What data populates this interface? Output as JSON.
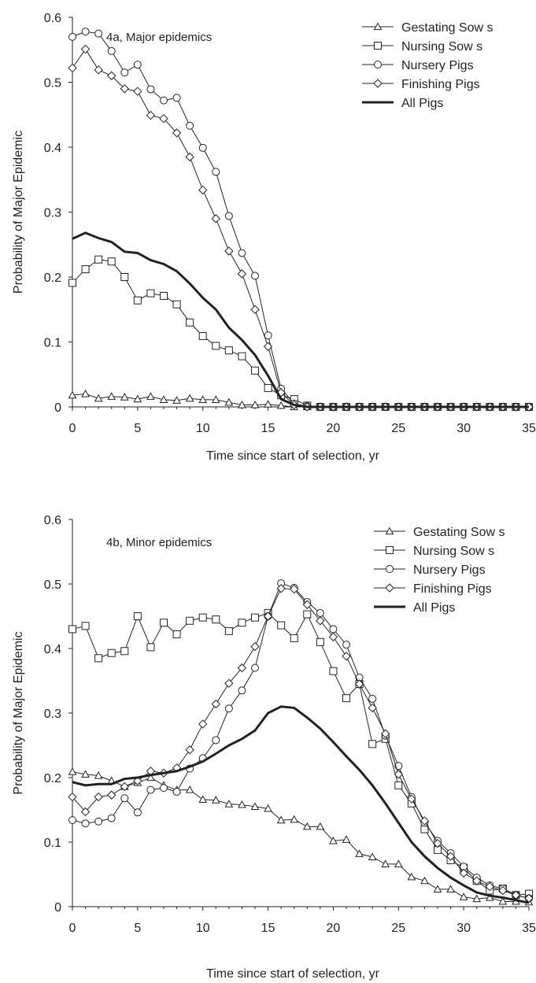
{
  "chart_data": [
    {
      "type": "line",
      "title": "4a, Major epidemics",
      "xlabel": "Time since start of selection, yr",
      "ylabel": "Probability of Major Epidemic",
      "xlim": [
        0,
        35
      ],
      "ylim": [
        0,
        0.6
      ],
      "xticks": [
        "0",
        "5",
        "10",
        "15",
        "20",
        "25",
        "30",
        "35"
      ],
      "yticks": [
        "0",
        "0.1",
        "0.2",
        "0.3",
        "0.4",
        "0.5",
        "0.6"
      ],
      "grid": false,
      "legend": "top-right",
      "x": [
        0,
        1,
        2,
        3,
        4,
        5,
        6,
        7,
        8,
        9,
        10,
        11,
        12,
        13,
        14,
        15,
        16,
        17,
        18,
        19,
        20,
        21,
        22,
        23,
        24,
        25,
        26,
        27,
        28,
        29,
        30,
        31,
        32,
        33,
        34,
        35
      ],
      "series": [
        {
          "name": "Gestating Sow s",
          "marker": "triangle",
          "values": [
            0.018,
            0.02,
            0.013,
            0.016,
            0.015,
            0.012,
            0.016,
            0.011,
            0.01,
            0.013,
            0.011,
            0.011,
            0.007,
            0.003,
            0.003,
            0.004,
            0.002,
            0.0,
            0,
            0,
            0,
            0,
            0,
            0,
            0,
            0,
            0,
            0,
            0,
            0,
            0,
            0,
            0,
            0,
            0,
            0
          ]
        },
        {
          "name": "Nursing Sow s",
          "marker": "square",
          "values": [
            0.191,
            0.212,
            0.227,
            0.224,
            0.2,
            0.164,
            0.175,
            0.171,
            0.158,
            0.13,
            0.109,
            0.094,
            0.087,
            0.078,
            0.056,
            0.029,
            0.018,
            0.012,
            0.002,
            0,
            0,
            0,
            0,
            0,
            0,
            0,
            0,
            0,
            0,
            0,
            0,
            0,
            0,
            0,
            0,
            0
          ]
        },
        {
          "name": "Nursery Pigs",
          "marker": "circle",
          "values": [
            0.57,
            0.578,
            0.575,
            0.548,
            0.515,
            0.527,
            0.489,
            0.472,
            0.476,
            0.433,
            0.399,
            0.362,
            0.294,
            0.237,
            0.202,
            0.11,
            0.028,
            0.005,
            0.001,
            0,
            0,
            0,
            0,
            0,
            0,
            0,
            0,
            0,
            0,
            0,
            0,
            0,
            0,
            0,
            0,
            0
          ]
        },
        {
          "name": "Finishing Pigs",
          "marker": "diamond",
          "values": [
            0.522,
            0.551,
            0.519,
            0.51,
            0.49,
            0.486,
            0.449,
            0.444,
            0.422,
            0.385,
            0.334,
            0.29,
            0.24,
            0.205,
            0.15,
            0.093,
            0.022,
            0.003,
            0.0,
            0,
            0,
            0,
            0,
            0,
            0,
            0,
            0,
            0,
            0,
            0,
            0,
            0,
            0,
            0,
            0,
            0
          ]
        },
        {
          "name": "All Pigs",
          "marker": "none",
          "bold": true,
          "values": [
            0.259,
            0.268,
            0.26,
            0.254,
            0.239,
            0.237,
            0.226,
            0.22,
            0.209,
            0.19,
            0.168,
            0.15,
            0.122,
            0.103,
            0.08,
            0.048,
            0.012,
            0.003,
            0.0,
            0,
            0,
            0,
            0,
            0,
            0,
            0,
            0,
            0,
            0,
            0,
            0,
            0,
            0,
            0,
            0,
            0
          ]
        }
      ]
    },
    {
      "type": "line",
      "title": "4b, Minor epidemics",
      "xlabel": "Time since start of selection, yr",
      "ylabel": "Probability of Major Epidemic",
      "xlim": [
        0,
        35
      ],
      "ylim": [
        0,
        0.6
      ],
      "xticks": [
        "0",
        "5",
        "10",
        "15",
        "20",
        "25",
        "30",
        "35"
      ],
      "yticks": [
        "0",
        "0.1",
        "0.2",
        "0.3",
        "0.4",
        "0.5",
        "0.6"
      ],
      "grid": false,
      "legend": "top-right",
      "x": [
        0,
        1,
        2,
        3,
        4,
        5,
        6,
        7,
        8,
        9,
        10,
        11,
        12,
        13,
        14,
        15,
        16,
        17,
        18,
        19,
        20,
        21,
        22,
        23,
        24,
        25,
        26,
        27,
        28,
        29,
        30,
        31,
        32,
        33,
        34,
        35
      ],
      "series": [
        {
          "name": "Gestating Sow s",
          "marker": "triangle",
          "values": [
            0.209,
            0.205,
            0.203,
            0.195,
            0.186,
            0.192,
            0.2,
            0.188,
            0.181,
            0.181,
            0.166,
            0.165,
            0.159,
            0.158,
            0.155,
            0.152,
            0.134,
            0.135,
            0.124,
            0.124,
            0.102,
            0.104,
            0.082,
            0.077,
            0.066,
            0.066,
            0.046,
            0.04,
            0.027,
            0.027,
            0.015,
            0.012,
            0.014,
            0.008,
            0.008,
            0.007
          ]
        },
        {
          "name": "Nursing Sow s",
          "marker": "square",
          "values": [
            0.43,
            0.435,
            0.385,
            0.393,
            0.396,
            0.45,
            0.402,
            0.44,
            0.422,
            0.443,
            0.448,
            0.445,
            0.427,
            0.44,
            0.448,
            0.455,
            0.436,
            0.416,
            0.453,
            0.41,
            0.365,
            0.323,
            0.345,
            0.252,
            0.26,
            0.188,
            0.16,
            0.12,
            0.088,
            0.072,
            0.06,
            0.04,
            0.025,
            0.028,
            0.018,
            0.02
          ]
        },
        {
          "name": "Nursery Pigs",
          "marker": "circle",
          "values": [
            0.134,
            0.129,
            0.132,
            0.137,
            0.168,
            0.146,
            0.181,
            0.184,
            0.178,
            0.214,
            0.23,
            0.258,
            0.307,
            0.335,
            0.37,
            0.45,
            0.501,
            0.494,
            0.472,
            0.455,
            0.43,
            0.406,
            0.355,
            0.322,
            0.265,
            0.218,
            0.17,
            0.13,
            0.102,
            0.083,
            0.062,
            0.045,
            0.033,
            0.028,
            0.018,
            0.013
          ]
        },
        {
          "name": "Finishing Pigs",
          "marker": "diamond",
          "values": [
            0.17,
            0.147,
            0.17,
            0.173,
            0.186,
            0.195,
            0.21,
            0.207,
            0.215,
            0.243,
            0.283,
            0.314,
            0.346,
            0.37,
            0.403,
            0.45,
            0.493,
            0.492,
            0.468,
            0.443,
            0.418,
            0.388,
            0.345,
            0.308,
            0.268,
            0.205,
            0.167,
            0.133,
            0.098,
            0.078,
            0.052,
            0.04,
            0.031,
            0.025,
            0.018,
            0.013
          ]
        },
        {
          "name": "All Pigs",
          "marker": "none",
          "bold": true,
          "values": [
            0.193,
            0.188,
            0.19,
            0.19,
            0.198,
            0.2,
            0.204,
            0.207,
            0.21,
            0.217,
            0.225,
            0.237,
            0.25,
            0.26,
            0.273,
            0.3,
            0.31,
            0.308,
            0.293,
            0.276,
            0.255,
            0.233,
            0.212,
            0.188,
            0.16,
            0.13,
            0.1,
            0.078,
            0.06,
            0.045,
            0.033,
            0.022,
            0.017,
            0.014,
            0.01,
            0.006
          ]
        }
      ]
    }
  ]
}
